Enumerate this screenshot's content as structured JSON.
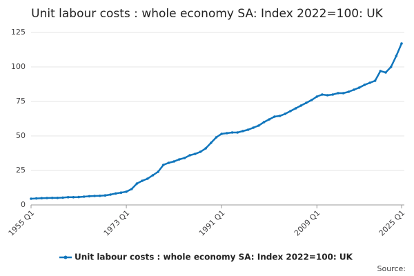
{
  "chart_data": {
    "type": "line",
    "title": "Unit labour costs : whole economy SA: Index 2022=100: UK",
    "source": "Source:",
    "categories": [
      "1955 Q1",
      null,
      null,
      null,
      null,
      null,
      null,
      null,
      null,
      null,
      null,
      null,
      null,
      null,
      null,
      null,
      null,
      null,
      "1973 Q1",
      null,
      null,
      null,
      null,
      null,
      null,
      null,
      null,
      null,
      null,
      null,
      null,
      null,
      null,
      null,
      null,
      null,
      "1991 Q1",
      null,
      null,
      null,
      null,
      null,
      null,
      null,
      null,
      null,
      null,
      null,
      null,
      null,
      null,
      null,
      null,
      null,
      "2009 Q1",
      null,
      null,
      null,
      null,
      null,
      null,
      null,
      null,
      null,
      null,
      null,
      null,
      null,
      null,
      null,
      "2025 Q1"
    ],
    "series": [
      {
        "name": "Unit labour costs : whole economy SA: Index 2022=100: UK",
        "color": "#0f75bc",
        "values": [
          4.5,
          4.7,
          4.9,
          5.0,
          5.1,
          5.1,
          5.3,
          5.6,
          5.6,
          5.7,
          6.0,
          6.3,
          6.5,
          6.6,
          6.9,
          7.5,
          8.3,
          8.9,
          9.6,
          11.5,
          15.5,
          17.5,
          19,
          21.5,
          24,
          29,
          30.5,
          31.5,
          33,
          34,
          36,
          37,
          38.5,
          41,
          45,
          49,
          51.5,
          52,
          52.5,
          52.5,
          53.5,
          54.5,
          56,
          57.5,
          60,
          62,
          64,
          64.5,
          66,
          68,
          70,
          72,
          74,
          76,
          78.5,
          80,
          79.5,
          80,
          81,
          81,
          82,
          83.5,
          85,
          87,
          88.5,
          90,
          97,
          96,
          100,
          108,
          117
        ]
      }
    ],
    "ylim": [
      0,
      125
    ],
    "yticks": [
      0,
      25,
      50,
      75,
      100,
      125
    ],
    "grid": true
  }
}
